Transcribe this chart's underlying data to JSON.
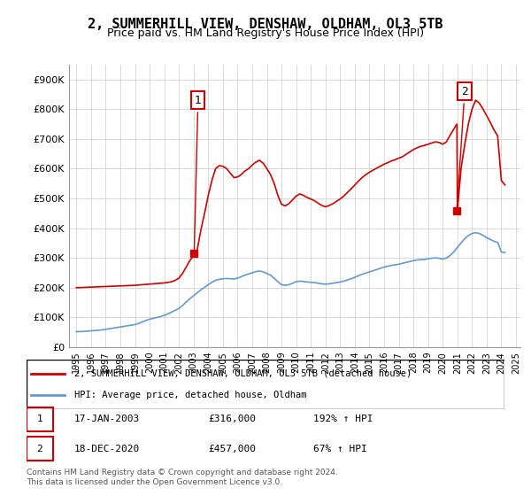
{
  "title": "2, SUMMERHILL VIEW, DENSHAW, OLDHAM, OL3 5TB",
  "subtitle": "Price paid vs. HM Land Registry's House Price Index (HPI)",
  "title_fontsize": 11,
  "subtitle_fontsize": 9,
  "ylabel": "",
  "ylim": [
    0,
    950000
  ],
  "yticks": [
    0,
    100000,
    200000,
    300000,
    400000,
    500000,
    600000,
    700000,
    800000,
    900000
  ],
  "ytick_labels": [
    "£0",
    "£100K",
    "£200K",
    "£300K",
    "£400K",
    "£500K",
    "£600K",
    "£700K",
    "£800K",
    "£900K"
  ],
  "background_color": "#ffffff",
  "grid_color": "#cccccc",
  "house_line_color": "#cc0000",
  "hpi_line_color": "#6699cc",
  "sale1_date": "2003-01-17",
  "sale1_price": 316000,
  "sale1_label": "1",
  "sale1_hpi_pct": "192%",
  "sale2_date": "2020-12-18",
  "sale2_price": 457000,
  "sale2_label": "2",
  "sale2_hpi_pct": "67%",
  "legend_house": "2, SUMMERHILL VIEW, DENSHAW, OLDHAM, OL3 5TB (detached house)",
  "legend_hpi": "HPI: Average price, detached house, Oldham",
  "footer1": "Contains HM Land Registry data © Crown copyright and database right 2024.",
  "footer2": "This data is licensed under the Open Government Licence v3.0.",
  "table_row1": [
    "1",
    "17-JAN-2003",
    "£316,000",
    "192% ↑ HPI"
  ],
  "table_row2": [
    "2",
    "18-DEC-2020",
    "£457,000",
    "67% ↑ HPI"
  ],
  "hpi_data": {
    "dates": [
      1995.0,
      1995.25,
      1995.5,
      1995.75,
      1996.0,
      1996.25,
      1996.5,
      1996.75,
      1997.0,
      1997.25,
      1997.5,
      1997.75,
      1998.0,
      1998.25,
      1998.5,
      1998.75,
      1999.0,
      1999.25,
      1999.5,
      1999.75,
      2000.0,
      2000.25,
      2000.5,
      2000.75,
      2001.0,
      2001.25,
      2001.5,
      2001.75,
      2002.0,
      2002.25,
      2002.5,
      2002.75,
      2003.0,
      2003.25,
      2003.5,
      2003.75,
      2004.0,
      2004.25,
      2004.5,
      2004.75,
      2005.0,
      2005.25,
      2005.5,
      2005.75,
      2006.0,
      2006.25,
      2006.5,
      2006.75,
      2007.0,
      2007.25,
      2007.5,
      2007.75,
      2008.0,
      2008.25,
      2008.5,
      2008.75,
      2009.0,
      2009.25,
      2009.5,
      2009.75,
      2010.0,
      2010.25,
      2010.5,
      2010.75,
      2011.0,
      2011.25,
      2011.5,
      2011.75,
      2012.0,
      2012.25,
      2012.5,
      2012.75,
      2013.0,
      2013.25,
      2013.5,
      2013.75,
      2014.0,
      2014.25,
      2014.5,
      2014.75,
      2015.0,
      2015.25,
      2015.5,
      2015.75,
      2016.0,
      2016.25,
      2016.5,
      2016.75,
      2017.0,
      2017.25,
      2017.5,
      2017.75,
      2018.0,
      2018.25,
      2018.5,
      2018.75,
      2019.0,
      2019.25,
      2019.5,
      2019.75,
      2020.0,
      2020.25,
      2020.5,
      2020.75,
      2021.0,
      2021.25,
      2021.5,
      2021.75,
      2022.0,
      2022.25,
      2022.5,
      2022.75,
      2023.0,
      2023.25,
      2023.5,
      2023.75,
      2024.0,
      2024.25
    ],
    "values": [
      52000,
      52500,
      53000,
      54000,
      55000,
      56000,
      57000,
      58000,
      60000,
      62000,
      64000,
      66000,
      68000,
      70000,
      72000,
      74000,
      76000,
      80000,
      85000,
      90000,
      94000,
      97000,
      100000,
      103000,
      107000,
      112000,
      118000,
      124000,
      130000,
      140000,
      152000,
      163000,
      173000,
      183000,
      193000,
      201000,
      210000,
      218000,
      225000,
      228000,
      230000,
      231000,
      230000,
      229000,
      232000,
      237000,
      242000,
      246000,
      250000,
      254000,
      256000,
      253000,
      248000,
      242000,
      232000,
      220000,
      210000,
      208000,
      210000,
      215000,
      220000,
      222000,
      221000,
      219000,
      218000,
      217000,
      215000,
      213000,
      212000,
      213000,
      215000,
      217000,
      219000,
      222000,
      226000,
      230000,
      235000,
      240000,
      245000,
      249000,
      253000,
      257000,
      261000,
      265000,
      269000,
      272000,
      275000,
      277000,
      279000,
      282000,
      285000,
      288000,
      291000,
      293000,
      294000,
      295000,
      297000,
      299000,
      300000,
      299000,
      296000,
      300000,
      308000,
      320000,
      335000,
      350000,
      365000,
      375000,
      382000,
      385000,
      382000,
      376000,
      368000,
      362000,
      356000,
      352000,
      320000,
      318000
    ]
  },
  "house_data": {
    "dates": [
      1995.0,
      1995.25,
      1995.5,
      1995.75,
      1996.0,
      1996.25,
      1996.5,
      1996.75,
      1997.0,
      1997.25,
      1997.5,
      1997.75,
      1998.0,
      1998.25,
      1998.5,
      1998.75,
      1999.0,
      1999.25,
      1999.5,
      1999.75,
      2000.0,
      2000.25,
      2000.5,
      2000.75,
      2001.0,
      2001.25,
      2001.5,
      2001.75,
      2002.0,
      2002.25,
      2002.5,
      2002.75,
      2003.17,
      2003.25,
      2003.5,
      2003.75,
      2004.0,
      2004.25,
      2004.5,
      2004.75,
      2005.0,
      2005.25,
      2005.5,
      2005.75,
      2006.0,
      2006.25,
      2006.5,
      2006.75,
      2007.0,
      2007.25,
      2007.5,
      2007.75,
      2008.0,
      2008.25,
      2008.5,
      2008.75,
      2009.0,
      2009.25,
      2009.5,
      2009.75,
      2010.0,
      2010.25,
      2010.5,
      2010.75,
      2011.0,
      2011.25,
      2011.5,
      2011.75,
      2012.0,
      2012.25,
      2012.5,
      2012.75,
      2013.0,
      2013.25,
      2013.5,
      2013.75,
      2014.0,
      2014.25,
      2014.5,
      2014.75,
      2015.0,
      2015.25,
      2015.5,
      2015.75,
      2016.0,
      2016.25,
      2016.5,
      2016.75,
      2017.0,
      2017.25,
      2017.5,
      2017.75,
      2018.0,
      2018.25,
      2018.5,
      2018.75,
      2019.0,
      2019.25,
      2019.5,
      2019.75,
      2020.0,
      2020.25,
      2020.5,
      2020.97,
      2021.0,
      2021.25,
      2021.5,
      2021.75,
      2022.0,
      2022.25,
      2022.5,
      2022.75,
      2023.0,
      2023.25,
      2023.5,
      2023.75,
      2024.0,
      2024.25
    ],
    "values": [
      200000,
      200500,
      201000,
      201500,
      202000,
      202500,
      203000,
      203500,
      204000,
      204500,
      205000,
      205500,
      206000,
      206500,
      207000,
      207500,
      208000,
      209000,
      210000,
      211000,
      212000,
      213000,
      214000,
      215000,
      216000,
      218000,
      220000,
      225000,
      232000,
      248000,
      270000,
      292000,
      316000,
      328000,
      395000,
      450000,
      510000,
      560000,
      600000,
      610000,
      608000,
      600000,
      585000,
      570000,
      572000,
      580000,
      592000,
      600000,
      612000,
      622000,
      628000,
      618000,
      600000,
      580000,
      550000,
      510000,
      480000,
      475000,
      482000,
      495000,
      508000,
      515000,
      510000,
      503000,
      498000,
      492000,
      484000,
      476000,
      472000,
      476000,
      482000,
      490000,
      498000,
      508000,
      520000,
      532000,
      545000,
      558000,
      570000,
      580000,
      588000,
      595000,
      602000,
      608000,
      615000,
      620000,
      626000,
      630000,
      635000,
      640000,
      648000,
      656000,
      664000,
      670000,
      675000,
      678000,
      682000,
      686000,
      690000,
      688000,
      682000,
      690000,
      712000,
      750000,
      457000,
      600000,
      680000,
      750000,
      800000,
      830000,
      820000,
      800000,
      778000,
      755000,
      730000,
      710000,
      560000,
      545000
    ]
  }
}
